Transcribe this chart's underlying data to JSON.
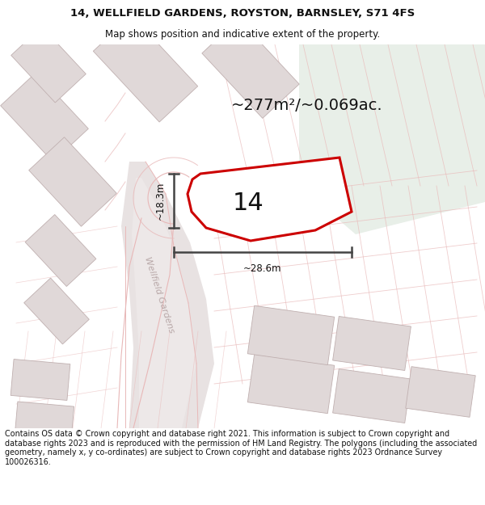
{
  "title_line1": "14, WELLFIELD GARDENS, ROYSTON, BARNSLEY, S71 4FS",
  "title_line2": "Map shows position and indicative extent of the property.",
  "footer_text": "Contains OS data © Crown copyright and database right 2021. This information is subject to Crown copyright and database rights 2023 and is reproduced with the permission of HM Land Registry. The polygons (including the associated geometry, namely x, y co-ordinates) are subject to Crown copyright and database rights 2023 Ordnance Survey 100026316.",
  "area_label": "~277m²/~0.069ac.",
  "number_label": "14",
  "width_label": "~28.6m",
  "height_label": "~18.3m",
  "street_label": "Wellfield Gardens",
  "map_bg": "#f2eded",
  "plot_fill": "#f2eded",
  "plot_edge": "#cc0000",
  "building_fc": "#e0d8d8",
  "building_ec": "#c0b0b0",
  "road_fc": "#e8e2e2",
  "road_line_color": "#e8b8b8",
  "green_fc": "#e8efe8",
  "dim_color": "#444444",
  "title_fontsize": 9.5,
  "subtitle_fontsize": 8.5,
  "footer_fontsize": 6.9,
  "area_fontsize": 14,
  "number_fontsize": 22,
  "dim_fontsize": 8.5,
  "street_fontsize": 8.0
}
